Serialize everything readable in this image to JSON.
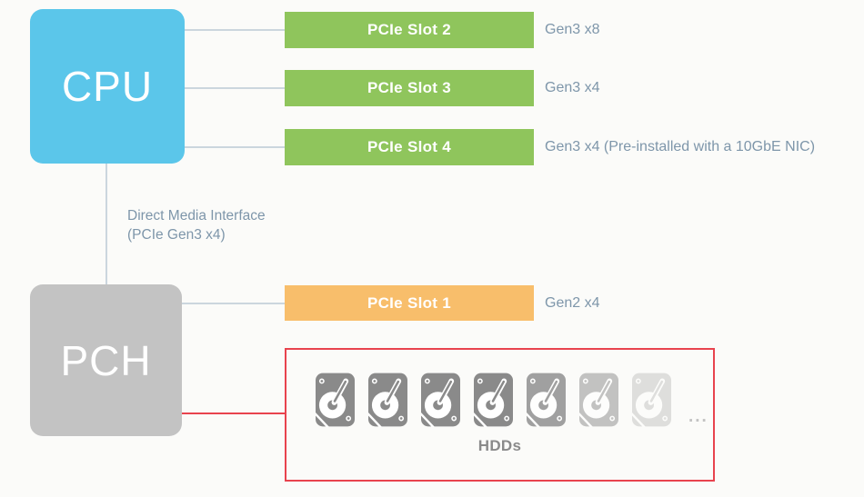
{
  "colors": {
    "cpu_blue": "#5BC6EA",
    "pch_gray": "#C3C3C3",
    "slot_green": "#8FC55C",
    "slot_orange": "#F8BE6B",
    "hdd_red": "#E8434E",
    "hdd_icon_gray": "#8A8A8A",
    "connector_gray": "#CBD6DE",
    "label_blue_gray": "#7E96AA"
  },
  "diagram": {
    "cpu": {
      "label": "CPU"
    },
    "pch": {
      "label": "PCH"
    },
    "dmi_label": {
      "line1": "Direct Media Interface",
      "line2": "(PCIe Gen3 x4)"
    },
    "cpu_slots": [
      {
        "label": "PCIe Slot 2",
        "spec": "Gen3 x8"
      },
      {
        "label": "PCIe Slot 3",
        "spec": "Gen3 x4"
      },
      {
        "label": "PCIe Slot 4",
        "spec": "Gen3 x4 (Pre-installed with a 10GbE NIC)"
      }
    ],
    "pch_slots": [
      {
        "label": "PCIe Slot 1",
        "spec": "Gen2 x4"
      }
    ],
    "hdds": {
      "label": "HDDs",
      "ellipsis": "...",
      "icon_count": 7,
      "icon_opacities": [
        1,
        1,
        1,
        1,
        0.8,
        0.5,
        0.25
      ]
    }
  }
}
